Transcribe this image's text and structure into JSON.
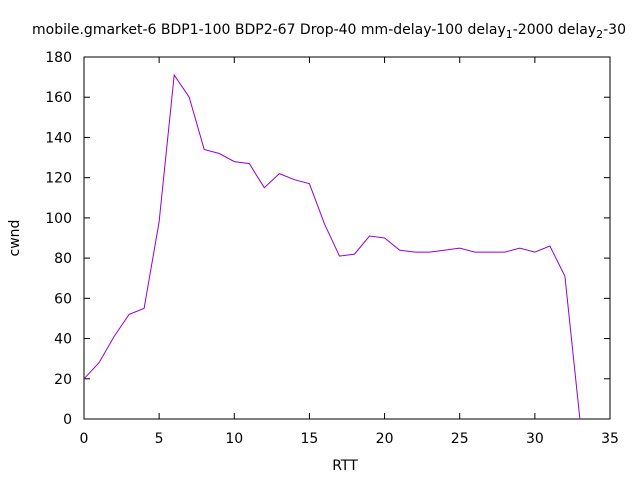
{
  "chart_data": {
    "type": "line",
    "title": "mobile.gmarket-6 BDP1-100 BDP2-67 Drop-40 mm-delay-100 delay",
    "title_segments": [
      {
        "text": "mobile.gmarket-6 BDP1-100 BDP2-67 Drop-40 mm-delay-100 delay",
        "sub": false
      },
      {
        "text": "1",
        "sub": true
      },
      {
        "text": "-2000 delay",
        "sub": false
      },
      {
        "text": "2",
        "sub": true
      },
      {
        "text": "-30",
        "sub": false
      }
    ],
    "xlabel": "RTT",
    "ylabel": "cwnd",
    "xlim": [
      0,
      35
    ],
    "ylim": [
      0,
      180
    ],
    "xticks": [
      0,
      5,
      10,
      15,
      20,
      25,
      30,
      35
    ],
    "yticks": [
      0,
      20,
      40,
      60,
      80,
      100,
      120,
      140,
      160,
      180
    ],
    "grid": false,
    "series_color": "#9400d3",
    "x": [
      0,
      1,
      2,
      3,
      4,
      5,
      6,
      7,
      8,
      9,
      10,
      11,
      12,
      13,
      14,
      15,
      16,
      17,
      18,
      19,
      20,
      21,
      22,
      23,
      24,
      25,
      26,
      27,
      28,
      29,
      30,
      31,
      32,
      33
    ],
    "y": [
      20,
      28,
      41,
      52,
      55,
      98,
      171,
      160,
      134,
      132,
      128,
      127,
      115,
      122,
      119,
      117,
      97,
      81,
      82,
      91,
      90,
      84,
      83,
      83,
      84,
      85,
      83,
      83,
      83,
      85,
      83,
      86,
      71,
      0
    ]
  }
}
